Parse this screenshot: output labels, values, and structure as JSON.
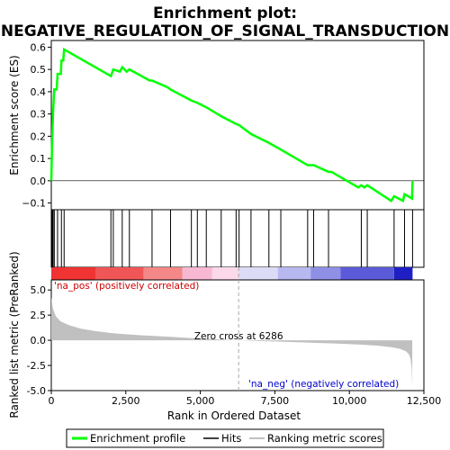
{
  "chart_data": {
    "type": "line",
    "title_line1": "Enrichment plot:",
    "title_line2": "NEGATIVE_REGULATION_OF_SIGNAL_TRANSDUCTION",
    "es_panel": {
      "ylabel": "Enrichment score (ES)",
      "ylim": [
        -0.13,
        0.63
      ],
      "yticks": [
        -0.1,
        0.0,
        0.1,
        0.2,
        0.3,
        0.4,
        0.5,
        0.6
      ],
      "ytick_labels": [
        "−0.1",
        "0.0",
        "0.1",
        "0.2",
        "0.3",
        "0.4",
        "0.5",
        "0.6"
      ],
      "color": "#00ff00",
      "points": [
        [
          0,
          0.0
        ],
        [
          30,
          0.18
        ],
        [
          60,
          0.31
        ],
        [
          100,
          0.41
        ],
        [
          180,
          0.41
        ],
        [
          210,
          0.48
        ],
        [
          320,
          0.48
        ],
        [
          340,
          0.54
        ],
        [
          400,
          0.54
        ],
        [
          430,
          0.59
        ],
        [
          2000,
          0.47
        ],
        [
          2080,
          0.5
        ],
        [
          2300,
          0.49
        ],
        [
          2380,
          0.51
        ],
        [
          2530,
          0.49
        ],
        [
          2620,
          0.5
        ],
        [
          3300,
          0.45
        ],
        [
          3380,
          0.45
        ],
        [
          3900,
          0.42
        ],
        [
          4000,
          0.41
        ],
        [
          4700,
          0.36
        ],
        [
          4900,
          0.35
        ],
        [
          5200,
          0.33
        ],
        [
          5700,
          0.29
        ],
        [
          6200,
          0.255
        ],
        [
          6300,
          0.25
        ],
        [
          6700,
          0.21
        ],
        [
          7300,
          0.17
        ],
        [
          7700,
          0.14
        ],
        [
          8600,
          0.07
        ],
        [
          8800,
          0.07
        ],
        [
          9300,
          0.04
        ],
        [
          9400,
          0.04
        ],
        [
          10300,
          -0.03
        ],
        [
          10400,
          -0.02
        ],
        [
          10500,
          -0.03
        ],
        [
          10600,
          -0.02
        ],
        [
          11400,
          -0.09
        ],
        [
          11500,
          -0.07
        ],
        [
          11800,
          -0.09
        ],
        [
          11850,
          -0.06
        ],
        [
          12100,
          -0.08
        ],
        [
          12120,
          0.0
        ]
      ]
    },
    "hit_positions": [
      30,
      60,
      100,
      210,
      340,
      430,
      2000,
      2080,
      2380,
      2620,
      3380,
      4000,
      4700,
      4900,
      5200,
      5700,
      6200,
      6300,
      6700,
      7300,
      7700,
      8600,
      8800,
      9300,
      10400,
      10600,
      11500,
      11850,
      12120
    ],
    "rank_panel": {
      "ylabel": "Ranked list metric (PreRanked)",
      "xlabel": "Rank in Ordered Dataset",
      "ylim": [
        -5.0,
        6.0
      ],
      "yticks": [
        -5.0,
        -2.5,
        0.0,
        2.5,
        5.0
      ],
      "ytick_labels": [
        "-5.0",
        "-2.5",
        "0.0",
        "2.5",
        "5.0"
      ],
      "metric_curve": [
        [
          0,
          4.3
        ],
        [
          50,
          3.2
        ],
        [
          150,
          2.4
        ],
        [
          300,
          1.9
        ],
        [
          600,
          1.5
        ],
        [
          1000,
          1.15
        ],
        [
          1500,
          0.9
        ],
        [
          2000,
          0.72
        ],
        [
          2500,
          0.6
        ],
        [
          3000,
          0.5
        ],
        [
          3500,
          0.42
        ],
        [
          4000,
          0.34
        ],
        [
          4500,
          0.25
        ],
        [
          5000,
          0.17
        ],
        [
          5500,
          0.1
        ],
        [
          6000,
          0.04
        ],
        [
          6286,
          0.0
        ],
        [
          6500,
          -0.03
        ],
        [
          7000,
          -0.08
        ],
        [
          7500,
          -0.12
        ],
        [
          8000,
          -0.17
        ],
        [
          8500,
          -0.22
        ],
        [
          9000,
          -0.27
        ],
        [
          9500,
          -0.32
        ],
        [
          10000,
          -0.38
        ],
        [
          10500,
          -0.45
        ],
        [
          11000,
          -0.55
        ],
        [
          11400,
          -0.68
        ],
        [
          11700,
          -0.85
        ],
        [
          11900,
          -1.1
        ],
        [
          12000,
          -1.4
        ],
        [
          12050,
          -1.8
        ],
        [
          12090,
          -2.8
        ],
        [
          12110,
          -4.6
        ]
      ],
      "pos_label": "'na_pos' (positively correlated)",
      "neg_label": "'na_neg' (negatively correlated)",
      "zero_cross_label": "Zero cross at 6286",
      "zero_cross": 6286
    },
    "x_axis": {
      "xlim": [
        0,
        12500
      ],
      "xticks": [
        0,
        2500,
        5000,
        7500,
        10000,
        12500
      ],
      "xtick_labels": [
        "0",
        "2,500",
        "5,000",
        "7,500",
        "10,000",
        "12,500"
      ],
      "list_length": 12120
    },
    "heat_bands": [
      {
        "start": 0,
        "end": 1500,
        "color": "#f03333"
      },
      {
        "start": 1500,
        "end": 3100,
        "color": "#f15656"
      },
      {
        "start": 3100,
        "end": 4400,
        "color": "#f48888"
      },
      {
        "start": 4400,
        "end": 5400,
        "color": "#f8b8d4"
      },
      {
        "start": 5400,
        "end": 6286,
        "color": "#fbd9ea"
      },
      {
        "start": 6286,
        "end": 7600,
        "color": "#dcdcf6"
      },
      {
        "start": 7600,
        "end": 8700,
        "color": "#b8b8f0"
      },
      {
        "start": 8700,
        "end": 9700,
        "color": "#8f8fe6"
      },
      {
        "start": 9700,
        "end": 11500,
        "color": "#5b5bd9"
      },
      {
        "start": 11500,
        "end": 12120,
        "color": "#1f1fc6"
      }
    ],
    "legend": {
      "items": [
        {
          "label": "Enrichment profile",
          "color": "#00ff00"
        },
        {
          "label": "Hits",
          "color": "#000000"
        },
        {
          "label": "Ranking metric scores",
          "color": "#c0c0c0"
        }
      ]
    }
  }
}
